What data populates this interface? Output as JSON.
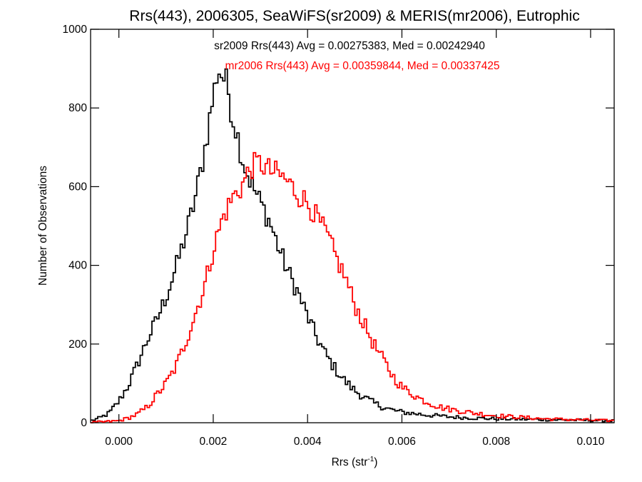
{
  "chart_data": {
    "type": "line",
    "title": "Rrs(443), 2006305, SeaWiFS(sr2009) & MERIS(mr2006), Eutrophic",
    "xlabel_main": "Rrs (str",
    "xlabel_sup": "-1",
    "xlabel_close": ")",
    "ylabel": "Number of Observations",
    "xlim": [
      -0.0006,
      0.0105
    ],
    "ylim": [
      0,
      1000
    ],
    "x_ticks": [
      0.0,
      0.002,
      0.004,
      0.006,
      0.008,
      0.01
    ],
    "x_tick_labels": [
      "0.000",
      "0.002",
      "0.004",
      "0.006",
      "0.008",
      "0.010"
    ],
    "y_ticks": [
      0,
      200,
      400,
      600,
      800,
      1000
    ],
    "y_tick_labels": [
      "0",
      "200",
      "400",
      "600",
      "800",
      "1000"
    ],
    "grid": false,
    "annotations": [
      {
        "text": "sr2009 Rrs(443) Avg = 0.00275383, Med = 0.00242940",
        "color": "#000000"
      },
      {
        "text": "mr2006 Rrs(443) Avg = 0.00359844, Med = 0.00337425",
        "color": "#ff0000"
      }
    ],
    "series": [
      {
        "color": "#000000",
        "points": [
          [
            -0.0006,
            5
          ],
          [
            -0.0004,
            12
          ],
          [
            -0.0002,
            25
          ],
          [
            0.0,
            55
          ],
          [
            0.0002,
            95
          ],
          [
            0.0004,
            150
          ],
          [
            0.0006,
            210
          ],
          [
            0.0008,
            260
          ],
          [
            0.001,
            320
          ],
          [
            0.0012,
            390
          ],
          [
            0.0014,
            470
          ],
          [
            0.0016,
            560
          ],
          [
            0.0018,
            680
          ],
          [
            0.002,
            830
          ],
          [
            0.0021,
            900
          ],
          [
            0.0022,
            880
          ],
          [
            0.0023,
            860
          ],
          [
            0.0024,
            780
          ],
          [
            0.0025,
            740
          ],
          [
            0.0026,
            680
          ],
          [
            0.0027,
            640
          ],
          [
            0.0028,
            610
          ],
          [
            0.003,
            560
          ],
          [
            0.0032,
            510
          ],
          [
            0.0034,
            440
          ],
          [
            0.0036,
            380
          ],
          [
            0.0038,
            330
          ],
          [
            0.004,
            270
          ],
          [
            0.0042,
            215
          ],
          [
            0.0044,
            170
          ],
          [
            0.0046,
            135
          ],
          [
            0.0048,
            105
          ],
          [
            0.005,
            82
          ],
          [
            0.0052,
            65
          ],
          [
            0.0054,
            50
          ],
          [
            0.0056,
            40
          ],
          [
            0.0058,
            32
          ],
          [
            0.006,
            27
          ],
          [
            0.0065,
            20
          ],
          [
            0.007,
            15
          ],
          [
            0.0075,
            12
          ],
          [
            0.008,
            10
          ],
          [
            0.009,
            8
          ],
          [
            0.0105,
            5
          ]
        ]
      },
      {
        "color": "#ff0000",
        "points": [
          [
            -0.0006,
            0
          ],
          [
            0.0,
            5
          ],
          [
            0.0002,
            12
          ],
          [
            0.0004,
            22
          ],
          [
            0.0006,
            40
          ],
          [
            0.0008,
            70
          ],
          [
            0.001,
            100
          ],
          [
            0.0012,
            140
          ],
          [
            0.0014,
            200
          ],
          [
            0.0016,
            270
          ],
          [
            0.0018,
            340
          ],
          [
            0.002,
            440
          ],
          [
            0.0022,
            520
          ],
          [
            0.0024,
            570
          ],
          [
            0.0026,
            600
          ],
          [
            0.0028,
            650
          ],
          [
            0.003,
            660
          ],
          [
            0.0032,
            640
          ],
          [
            0.0034,
            630
          ],
          [
            0.0036,
            610
          ],
          [
            0.0038,
            580
          ],
          [
            0.004,
            560
          ],
          [
            0.0042,
            520
          ],
          [
            0.0044,
            480
          ],
          [
            0.0046,
            420
          ],
          [
            0.0048,
            370
          ],
          [
            0.005,
            300
          ],
          [
            0.0052,
            250
          ],
          [
            0.0054,
            200
          ],
          [
            0.0056,
            160
          ],
          [
            0.0058,
            120
          ],
          [
            0.006,
            90
          ],
          [
            0.0062,
            75
          ],
          [
            0.0064,
            60
          ],
          [
            0.0066,
            50
          ],
          [
            0.0068,
            40
          ],
          [
            0.007,
            35
          ],
          [
            0.0075,
            25
          ],
          [
            0.008,
            18
          ],
          [
            0.009,
            10
          ],
          [
            0.0105,
            5
          ]
        ]
      }
    ]
  }
}
